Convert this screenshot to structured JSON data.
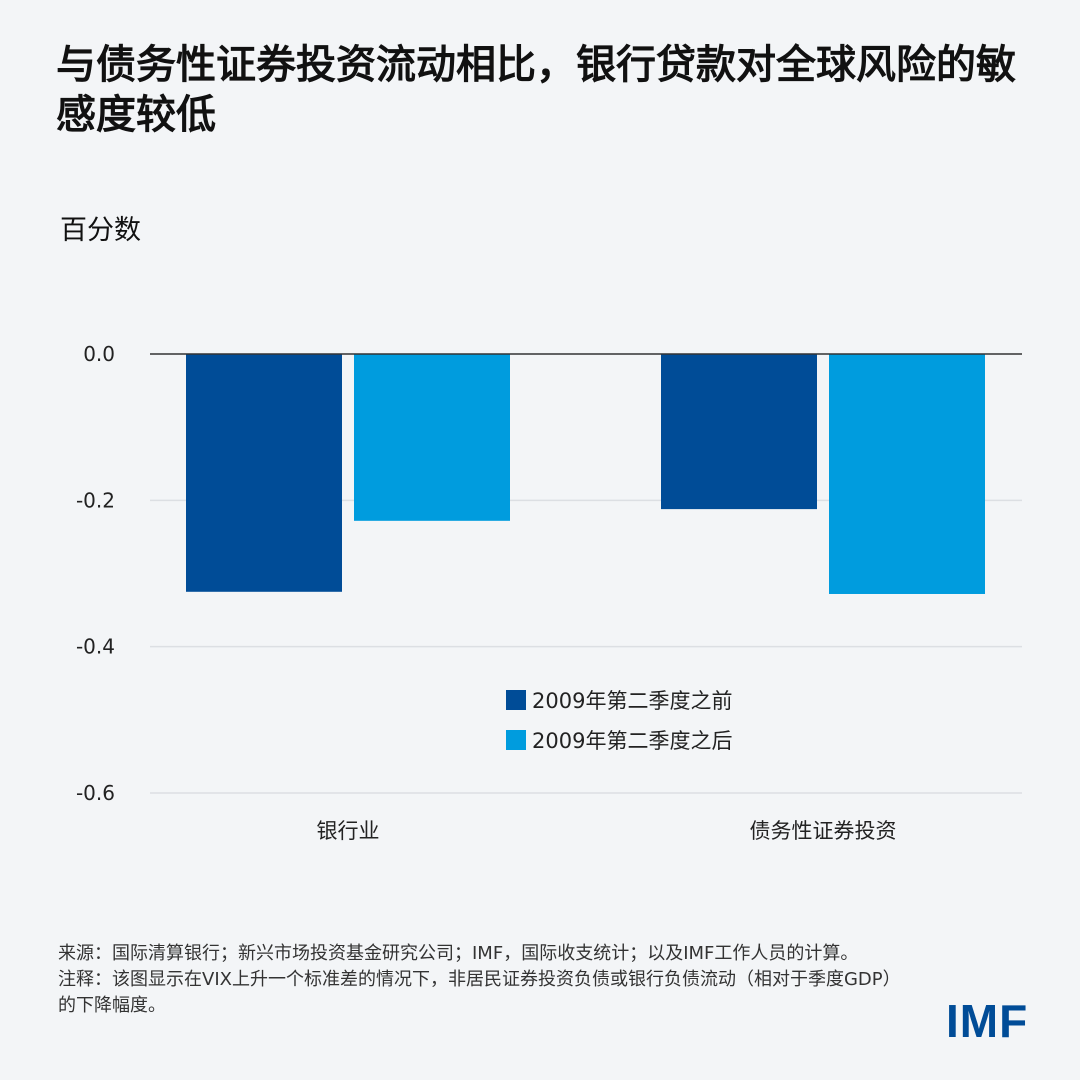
{
  "title": "与债务性证券投资流动相比，银行贷款对全球风险的敏感度较低",
  "chart_data": {
    "type": "bar",
    "ylabel": "百分数",
    "ylim": [
      -0.6,
      0.0
    ],
    "yticks": [
      "0.0",
      "-0.2",
      "-0.4",
      "-0.6"
    ],
    "ytick_values": [
      0.0,
      -0.2,
      -0.4,
      -0.6
    ],
    "categories": [
      "银行业",
      "债务性证券投资"
    ],
    "series": [
      {
        "name": "2009年第二季度之前",
        "color": "#004c97",
        "values": [
          -0.325,
          -0.212
        ]
      },
      {
        "name": "2009年第二季度之后",
        "color": "#009cde",
        "values": [
          -0.228,
          -0.328
        ]
      }
    ],
    "legend_position": "center"
  },
  "footer": {
    "source": "来源：国际清算银行；新兴市场投资基金研究公司；IMF，国际收支统计；以及IMF工作人员的计算。",
    "note": "注释：该图显示在VIX上升一个标准差的情况下，非居民证券投资负债或银行负债流动（相对于季度GDP）的下降幅度。"
  },
  "logo_text": "IMF"
}
